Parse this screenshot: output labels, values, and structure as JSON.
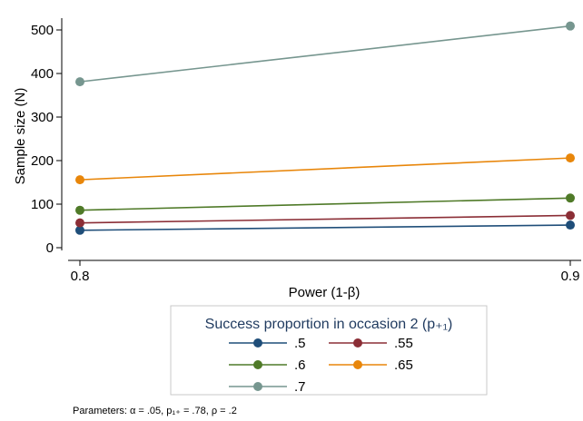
{
  "chart_data": {
    "type": "line",
    "x": [
      0.8,
      0.9
    ],
    "x_tick_labels": [
      "0.8",
      "0.9"
    ],
    "xlim": [
      0.8,
      0.9
    ],
    "ylim": [
      0,
      520
    ],
    "y_ticks": [
      0,
      100,
      200,
      300,
      400,
      500
    ],
    "y_tick_labels": [
      "0",
      "100",
      "200",
      "300",
      "400",
      "500"
    ],
    "xlabel": "Power (1-β)",
    "ylabel": "Sample size (N)",
    "grid": false,
    "legend": {
      "title": "Success proportion in occasion 2 (p₊₁)",
      "placement": "bottom"
    },
    "series": [
      {
        "name": ".5",
        "values": [
          40,
          52
        ],
        "color": "#1f4e79"
      },
      {
        "name": ".55",
        "values": [
          57,
          74
        ],
        "color": "#8b2e36"
      },
      {
        "name": ".6",
        "values": [
          86,
          114
        ],
        "color": "#4f7a28"
      },
      {
        "name": ".65",
        "values": [
          156,
          206
        ],
        "color": "#e8860a"
      },
      {
        "name": ".7",
        "values": [
          381,
          509
        ],
        "color": "#76968f"
      }
    ],
    "note": "Parameters: α = .05, p₁₊ = .78, ρ = .2"
  }
}
